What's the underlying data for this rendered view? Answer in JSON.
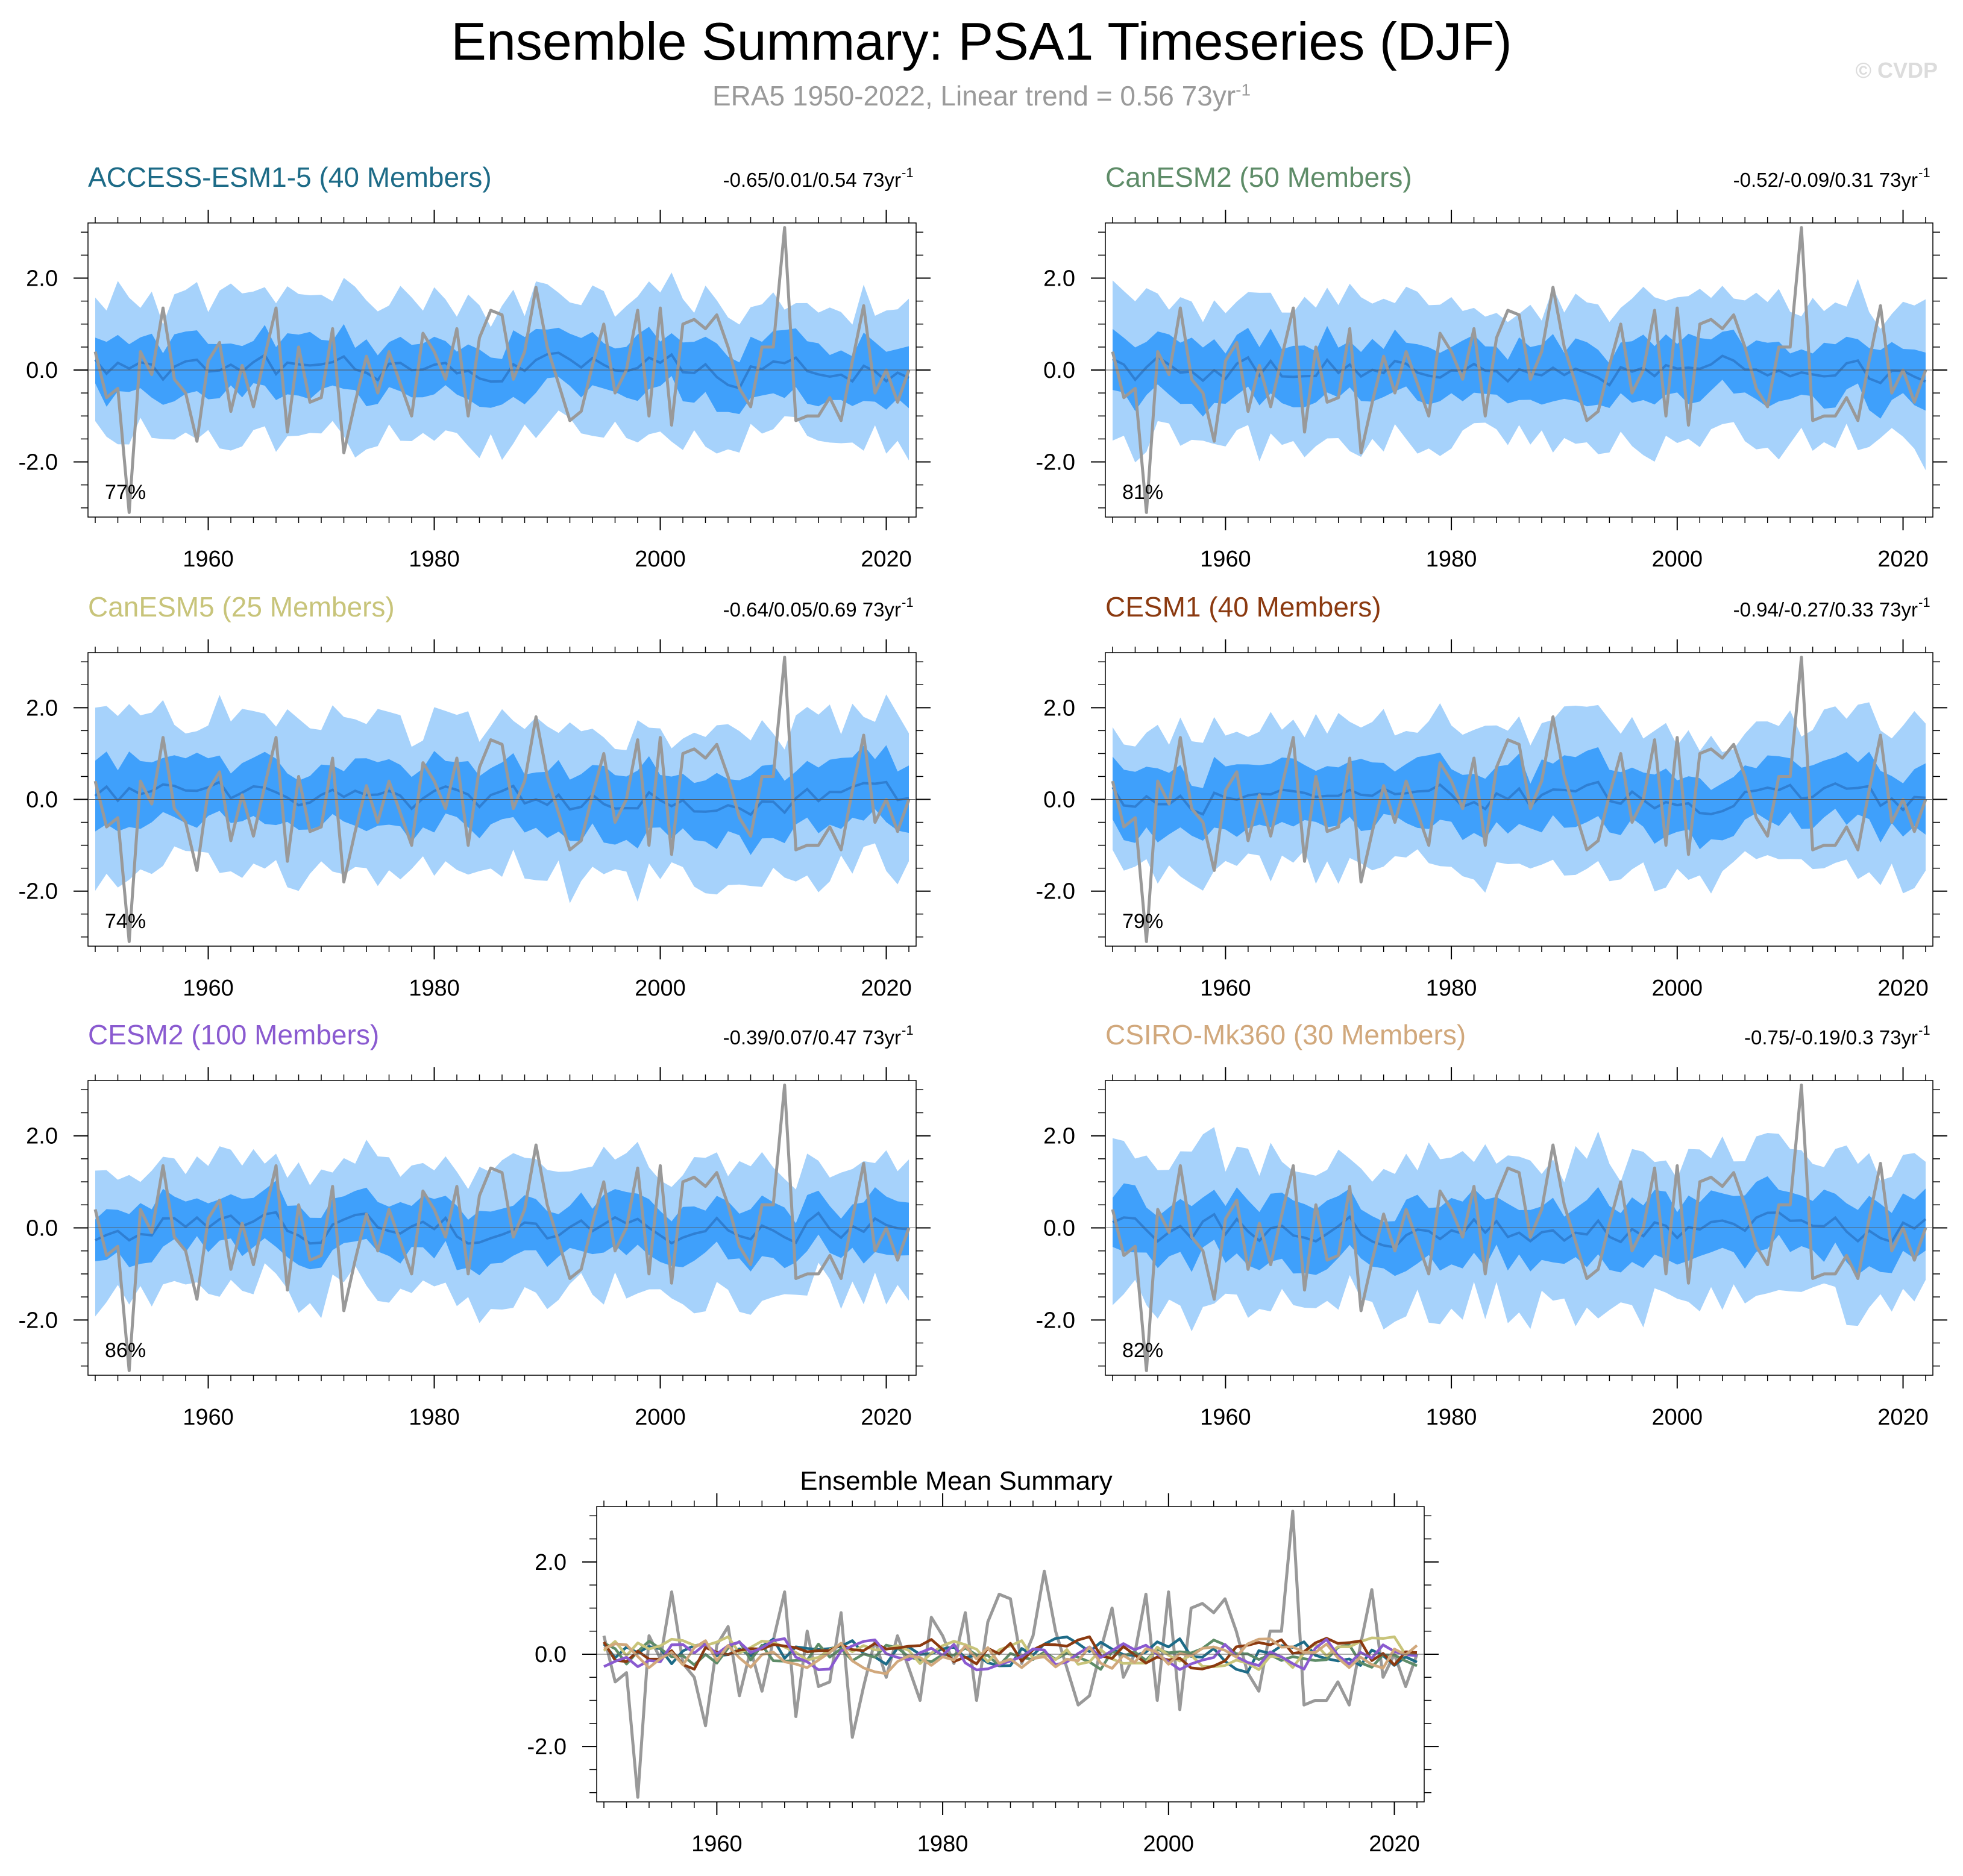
{
  "header": {
    "title": "Ensemble Summary: PSA1 Timeseries (DJF)",
    "subtitle_main": "ERA5 1950-2022, Linear trend = 0.56 73yr",
    "subtitle_sup": "-1",
    "copyright": "© CVDP"
  },
  "colors": {
    "outer_band": "#a6d2fb",
    "inner_band": "#3fa0fb",
    "ens_mean_line": "#2f7fd3",
    "obs_line": "#999999"
  },
  "chart_data": {
    "type": "line",
    "x_range": [
      1950,
      2022
    ],
    "ylim": [
      -3.2,
      3.2
    ],
    "x_ticks": [
      1960,
      1980,
      2000,
      2020
    ],
    "y_ticks": [
      2.0,
      0.0,
      -2.0
    ],
    "y_tick_labels": [
      "2.0",
      "0.0",
      "-2.0"
    ],
    "observations": {
      "name": "ERA5",
      "x": [
        1950,
        1951,
        1952,
        1953,
        1954,
        1955,
        1956,
        1957,
        1958,
        1959,
        1960,
        1961,
        1962,
        1963,
        1964,
        1965,
        1966,
        1967,
        1968,
        1969,
        1970,
        1971,
        1972,
        1973,
        1974,
        1975,
        1976,
        1977,
        1978,
        1979,
        1980,
        1981,
        1982,
        1983,
        1984,
        1985,
        1986,
        1987,
        1988,
        1989,
        1990,
        1991,
        1992,
        1993,
        1994,
        1995,
        1996,
        1997,
        1998,
        1999,
        2000,
        2001,
        2002,
        2003,
        2004,
        2005,
        2006,
        2007,
        2008,
        2009,
        2010,
        2011,
        2012,
        2013,
        2014,
        2015,
        2016,
        2017,
        2018,
        2019,
        2020,
        2021,
        2022
      ],
      "values": [
        0.4,
        -0.6,
        -0.4,
        -3.1,
        0.4,
        -0.1,
        1.35,
        -0.2,
        -0.5,
        -1.55,
        0.2,
        0.6,
        -0.9,
        0.1,
        -0.8,
        0.3,
        1.35,
        -1.35,
        0.5,
        -0.7,
        -0.6,
        0.9,
        -1.8,
        -0.7,
        0.3,
        -0.5,
        0.4,
        -0.3,
        -1.0,
        0.8,
        0.4,
        -0.2,
        0.9,
        -1.0,
        0.7,
        1.3,
        1.2,
        -0.2,
        0.4,
        1.8,
        0.5,
        -0.3,
        -1.1,
        -0.9,
        0.1,
        1.0,
        -0.5,
        0.0,
        1.3,
        -1.0,
        1.35,
        -1.2,
        1.0,
        1.1,
        0.9,
        1.2,
        0.5,
        -0.4,
        -0.8,
        0.5,
        0.5,
        3.1,
        -1.1,
        -1.0,
        -1.0,
        -0.6,
        -1.1,
        0.2,
        1.4,
        -0.5,
        0.0,
        -0.7,
        0.0
      ]
    },
    "panels": [
      {
        "model": "ACCESS-ESM1-5",
        "members": "ACCESS-ESM1-5 (40 Members)",
        "trend": "-0.65/0.01/0.54 73yr",
        "trend_sup": "-1",
        "percent": "77%",
        "title_color": "#1d6b87",
        "mean_color": "#1d6b87",
        "outer_halfwidth": 1.45,
        "inner_halfwidth": 0.6,
        "seed": 11
      },
      {
        "model": "CanESM2",
        "members": "CanESM2 (50 Members)",
        "trend": "-0.52/-0.09/0.31 73yr",
        "trend_sup": "-1",
        "percent": "81%",
        "title_color": "#5e8c68",
        "mean_color": "#5e8c68",
        "outer_halfwidth": 1.45,
        "inner_halfwidth": 0.6,
        "seed": 23
      },
      {
        "model": "CanESM5",
        "members": "CanESM5 (25 Members)",
        "trend": "-0.64/0.05/0.69 73yr",
        "trend_sup": "-1",
        "percent": "74%",
        "title_color": "#c8c47a",
        "mean_color": "#c8c47a",
        "outer_halfwidth": 1.55,
        "inner_halfwidth": 0.7,
        "seed": 37
      },
      {
        "model": "CESM1",
        "members": "CESM1 (40 Members)",
        "trend": "-0.94/-0.27/0.33 73yr",
        "trend_sup": "-1",
        "percent": "79%",
        "title_color": "#8b3a10",
        "mean_color": "#8b3a10",
        "outer_halfwidth": 1.5,
        "inner_halfwidth": 0.65,
        "seed": 41
      },
      {
        "model": "CESM2",
        "members": "CESM2 (100 Members)",
        "trend": "-0.39/0.07/0.47 73yr",
        "trend_sup": "-1",
        "percent": "86%",
        "title_color": "#8a5ad0",
        "mean_color": "#8a5ad0",
        "outer_halfwidth": 1.35,
        "inner_halfwidth": 0.55,
        "seed": 53
      },
      {
        "model": "CSIRO-Mk360",
        "members": "CSIRO-Mk360 (30 Members)",
        "trend": "-0.75/-0.19/0.3 73yr",
        "trend_sup": "-1",
        "percent": "82%",
        "title_color": "#d1a87c",
        "mean_color": "#d1a87c",
        "outer_halfwidth": 1.55,
        "inner_halfwidth": 0.65,
        "seed": 67
      }
    ],
    "ensemble_mean_summary": {
      "title": "Ensemble Mean Summary",
      "series_names": [
        "ACCESS-ESM1-5",
        "CanESM2",
        "CanESM5",
        "CESM1",
        "CESM2",
        "CSIRO-Mk360",
        "ERA5"
      ]
    }
  }
}
